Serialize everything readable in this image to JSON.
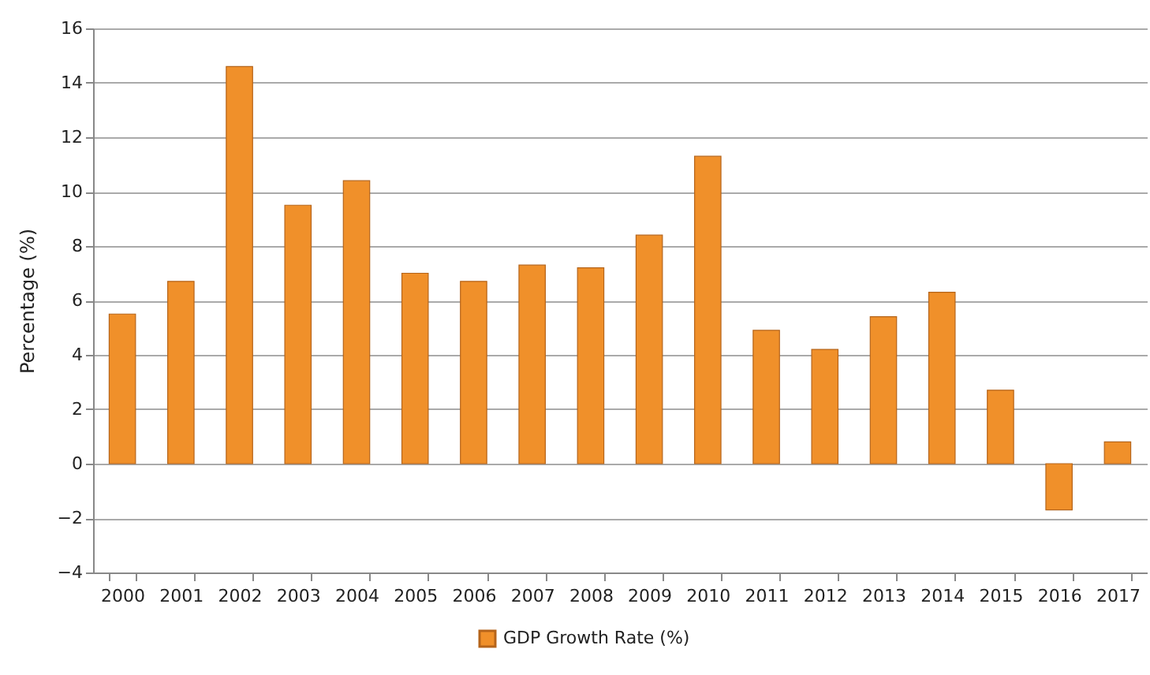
{
  "chart_data": {
    "type": "bar",
    "ylabel": "Percentage (%)",
    "categories": [
      "2000",
      "2001",
      "2002",
      "2003",
      "2004",
      "2005",
      "2006",
      "2007",
      "2008",
      "2009",
      "2010",
      "2011",
      "2012",
      "2013",
      "2014",
      "2015",
      "2016",
      "2017"
    ],
    "series": [
      {
        "name": "GDP Growth Rate (%)",
        "color": "#f0902a",
        "values": [
          5.5,
          6.7,
          14.6,
          9.5,
          10.4,
          7.0,
          6.7,
          7.3,
          7.2,
          8.4,
          11.3,
          4.9,
          4.2,
          5.4,
          6.3,
          2.7,
          -1.7,
          0.8
        ]
      }
    ],
    "ylim": [
      -4,
      16
    ],
    "yticks": [
      -4,
      -2,
      0,
      2,
      4,
      6,
      8,
      10,
      12,
      14,
      16
    ],
    "grid": "y",
    "legend": "bottom"
  }
}
